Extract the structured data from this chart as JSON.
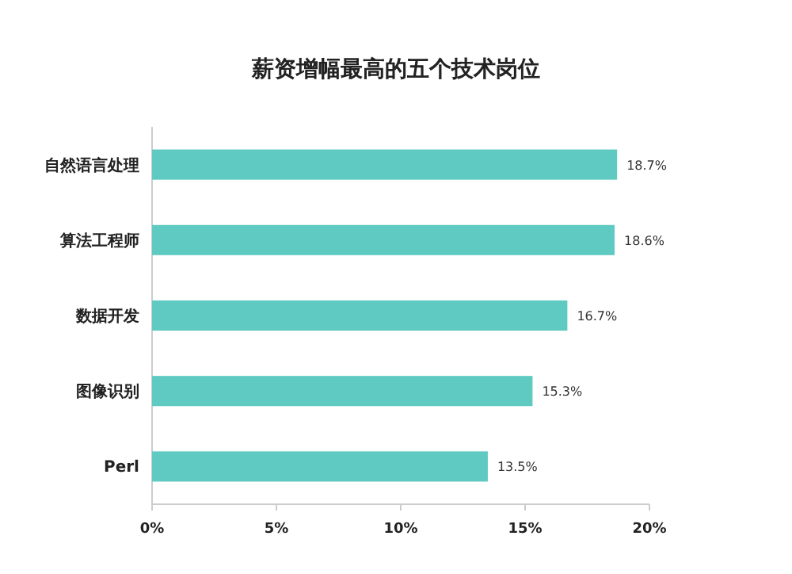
{
  "chart_data": {
    "type": "bar",
    "orientation": "horizontal",
    "title": "薪资增幅最高的五个技术岗位",
    "categories": [
      "自然语言处理",
      "算法工程师",
      "数据开发",
      "图像识别",
      "Perl"
    ],
    "values": [
      18.7,
      18.6,
      16.7,
      15.3,
      13.5
    ],
    "value_labels": [
      "18.7%",
      "18.6%",
      "16.7%",
      "15.3%",
      "13.5%"
    ],
    "color": "#5fcac2",
    "xlim": [
      0,
      20
    ],
    "xticks": [
      {
        "value": 0,
        "label": "0%"
      },
      {
        "value": 5,
        "label": "5%"
      },
      {
        "value": 10,
        "label": "10%"
      },
      {
        "value": 15,
        "label": "15%"
      },
      {
        "value": 20,
        "label": "20%"
      }
    ]
  }
}
